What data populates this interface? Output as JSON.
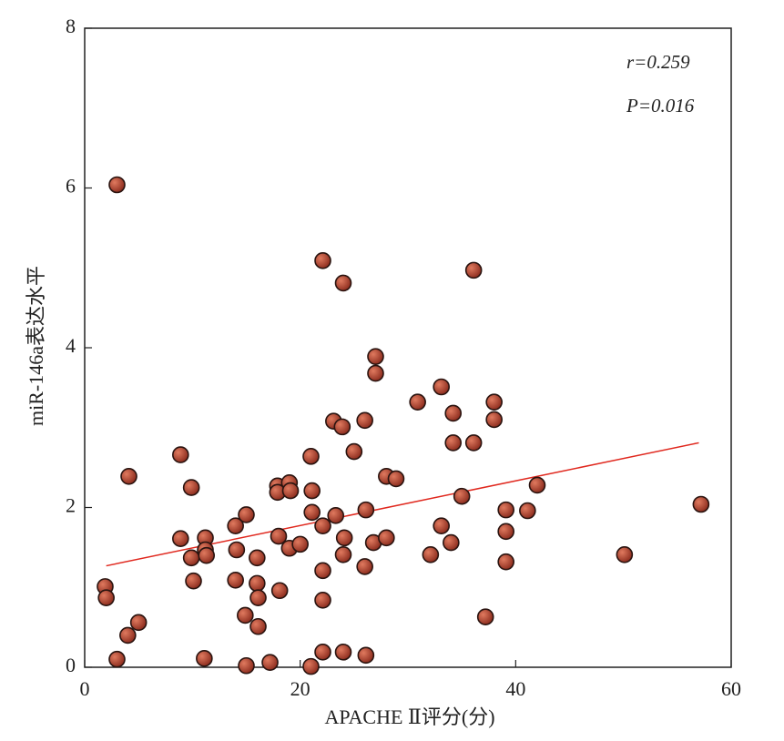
{
  "chart_data": {
    "type": "scatter",
    "x_label": "APACHE Ⅱ评分(分)",
    "y_label": "miR-146a表达水平",
    "annotations": [
      "r=0.259",
      "P=0.016"
    ],
    "xlim": [
      0,
      60
    ],
    "xticks": [
      0,
      20,
      40,
      60
    ],
    "ylim": [
      0,
      8
    ],
    "yticks": [
      0,
      2,
      4,
      6,
      8
    ],
    "color": "#b5402e",
    "fit_line": {
      "color": "#e0281e",
      "x": [
        2,
        57
      ],
      "y": [
        1.27,
        2.81
      ]
    },
    "series": [
      {
        "x": [
          3.0,
          1.9,
          2.0,
          3.0,
          4.0,
          5.0,
          4.1,
          8.9,
          9.9,
          8.9,
          9.9,
          10.1,
          11.2,
          11.2,
          11.3,
          11.1,
          14.0,
          14.1,
          14.0,
          15.0,
          14.9,
          15.0,
          16.0,
          16.0,
          16.1,
          16.1,
          17.2,
          17.9,
          17.9,
          18.0,
          18.1,
          19.0,
          19.1,
          19.0,
          20.0,
          21.0,
          21.1,
          21.1,
          21.0,
          22.1,
          22.1,
          22.1,
          22.1,
          22.1,
          23.1,
          23.3,
          24.0,
          23.9,
          24.1,
          24.0,
          24.0,
          25.0,
          26.0,
          26.1,
          26.0,
          26.1,
          27.0,
          27.0,
          26.8,
          28.0,
          28.0,
          28.9,
          30.9,
          32.1,
          33.1,
          33.1,
          34.2,
          34.2,
          34.0,
          35.0,
          36.1,
          36.1,
          37.2,
          38.0,
          38.0,
          39.1,
          39.1,
          39.1,
          41.1,
          42.0,
          50.1,
          57.2
        ],
        "values": [
          6.04,
          1.01,
          0.87,
          0.1,
          0.4,
          0.56,
          2.39,
          2.66,
          2.25,
          1.61,
          1.37,
          1.08,
          1.62,
          1.47,
          1.4,
          0.11,
          1.77,
          1.47,
          1.09,
          1.91,
          0.65,
          0.02,
          1.37,
          1.05,
          0.87,
          0.51,
          0.06,
          2.27,
          2.19,
          1.64,
          0.96,
          2.31,
          2.21,
          1.49,
          1.54,
          2.64,
          2.21,
          1.94,
          0.01,
          5.09,
          1.77,
          1.21,
          0.84,
          0.19,
          3.08,
          1.9,
          4.81,
          3.01,
          1.62,
          1.41,
          0.19,
          2.7,
          3.09,
          1.97,
          1.26,
          0.15,
          3.89,
          3.68,
          1.56,
          1.62,
          2.39,
          2.36,
          3.32,
          1.41,
          3.51,
          1.77,
          3.18,
          2.81,
          1.56,
          2.14,
          4.97,
          2.81,
          0.63,
          3.32,
          3.1,
          1.97,
          1.7,
          1.32,
          1.96,
          2.28,
          1.41,
          2.04
        ]
      }
    ]
  }
}
